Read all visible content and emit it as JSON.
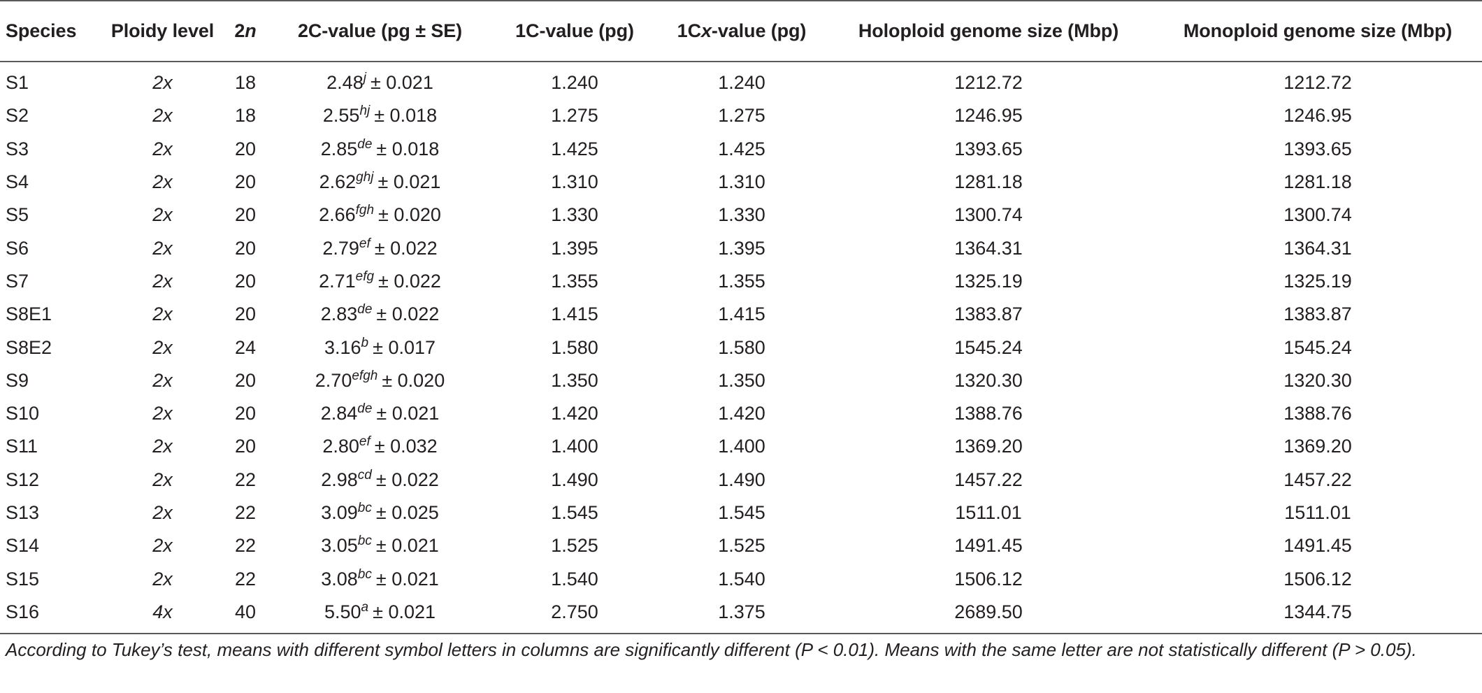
{
  "table": {
    "headers": {
      "species": "Species",
      "ploidy": "Ploidy level",
      "two_n": {
        "prefix": "2",
        "italic": "n"
      },
      "two_c": "2C-value (pg ± SE)",
      "one_c": "1C-value (pg)",
      "one_cx": {
        "prefix": "1C",
        "italic": "x",
        "suffix": "-value (pg)"
      },
      "holo": "Holoploid genome size (Mbp)",
      "mono": "Monoploid genome size (Mbp)"
    },
    "rows": [
      {
        "species": "S1",
        "ploidy": "2x",
        "two_n": "18",
        "two_c_mean": "2.48",
        "two_c_letters": "j",
        "two_c_se": "± 0.021",
        "one_c": "1.240",
        "one_cx": "1.240",
        "holo": "1212.72",
        "mono": "1212.72"
      },
      {
        "species": "S2",
        "ploidy": "2x",
        "two_n": "18",
        "two_c_mean": "2.55",
        "two_c_letters": "hj",
        "two_c_se": "± 0.018",
        "one_c": "1.275",
        "one_cx": "1.275",
        "holo": "1246.95",
        "mono": "1246.95"
      },
      {
        "species": "S3",
        "ploidy": "2x",
        "two_n": "20",
        "two_c_mean": "2.85",
        "two_c_letters": "de",
        "two_c_se": "± 0.018",
        "one_c": "1.425",
        "one_cx": "1.425",
        "holo": "1393.65",
        "mono": "1393.65"
      },
      {
        "species": "S4",
        "ploidy": "2x",
        "two_n": "20",
        "two_c_mean": "2.62",
        "two_c_letters": "ghj",
        "two_c_se": "± 0.021",
        "one_c": "1.310",
        "one_cx": "1.310",
        "holo": "1281.18",
        "mono": "1281.18"
      },
      {
        "species": "S5",
        "ploidy": "2x",
        "two_n": "20",
        "two_c_mean": "2.66",
        "two_c_letters": "fgh",
        "two_c_se": "± 0.020",
        "one_c": "1.330",
        "one_cx": "1.330",
        "holo": "1300.74",
        "mono": "1300.74"
      },
      {
        "species": "S6",
        "ploidy": "2x",
        "two_n": "20",
        "two_c_mean": "2.79",
        "two_c_letters": "ef",
        "two_c_se": "± 0.022",
        "one_c": "1.395",
        "one_cx": "1.395",
        "holo": "1364.31",
        "mono": "1364.31"
      },
      {
        "species": "S7",
        "ploidy": "2x",
        "two_n": "20",
        "two_c_mean": "2.71",
        "two_c_letters": "efg",
        "two_c_se": "± 0.022",
        "one_c": "1.355",
        "one_cx": "1.355",
        "holo": "1325.19",
        "mono": "1325.19"
      },
      {
        "species": "S8E1",
        "ploidy": "2x",
        "two_n": "20",
        "two_c_mean": "2.83",
        "two_c_letters": "de",
        "two_c_se": "± 0.022",
        "one_c": "1.415",
        "one_cx": "1.415",
        "holo": "1383.87",
        "mono": "1383.87"
      },
      {
        "species": "S8E2",
        "ploidy": "2x",
        "two_n": "24",
        "two_c_mean": "3.16",
        "two_c_letters": "b",
        "two_c_se": "± 0.017",
        "one_c": "1.580",
        "one_cx": "1.580",
        "holo": "1545.24",
        "mono": "1545.24"
      },
      {
        "species": "S9",
        "ploidy": "2x",
        "two_n": "20",
        "two_c_mean": "2.70",
        "two_c_letters": "efgh",
        "two_c_se": "± 0.020",
        "one_c": "1.350",
        "one_cx": "1.350",
        "holo": "1320.30",
        "mono": "1320.30"
      },
      {
        "species": "S10",
        "ploidy": "2x",
        "two_n": "20",
        "two_c_mean": "2.84",
        "two_c_letters": "de",
        "two_c_se": "± 0.021",
        "one_c": "1.420",
        "one_cx": "1.420",
        "holo": "1388.76",
        "mono": "1388.76"
      },
      {
        "species": "S11",
        "ploidy": "2x",
        "two_n": "20",
        "two_c_mean": "2.80",
        "two_c_letters": "ef",
        "two_c_se": "± 0.032",
        "one_c": "1.400",
        "one_cx": "1.400",
        "holo": "1369.20",
        "mono": "1369.20"
      },
      {
        "species": "S12",
        "ploidy": "2x",
        "two_n": "22",
        "two_c_mean": "2.98",
        "two_c_letters": "cd",
        "two_c_se": "± 0.022",
        "one_c": "1.490",
        "one_cx": "1.490",
        "holo": "1457.22",
        "mono": "1457.22"
      },
      {
        "species": "S13",
        "ploidy": "2x",
        "two_n": "22",
        "two_c_mean": "3.09",
        "two_c_letters": "bc",
        "two_c_se": "± 0.025",
        "one_c": "1.545",
        "one_cx": "1.545",
        "holo": "1511.01",
        "mono": "1511.01"
      },
      {
        "species": "S14",
        "ploidy": "2x",
        "two_n": "22",
        "two_c_mean": "3.05",
        "two_c_letters": "bc",
        "two_c_se": "± 0.021",
        "one_c": "1.525",
        "one_cx": "1.525",
        "holo": "1491.45",
        "mono": "1491.45"
      },
      {
        "species": "S15",
        "ploidy": "2x",
        "two_n": "22",
        "two_c_mean": "3.08",
        "two_c_letters": "bc",
        "two_c_se": "± 0.021",
        "one_c": "1.540",
        "one_cx": "1.540",
        "holo": "1506.12",
        "mono": "1506.12"
      },
      {
        "species": "S16",
        "ploidy": "4x",
        "two_n": "40",
        "two_c_mean": "5.50",
        "two_c_letters": "a",
        "two_c_se": "± 0.021",
        "one_c": "2.750",
        "one_cx": "1.375",
        "holo": "2689.50",
        "mono": "1344.75"
      }
    ]
  },
  "footnote": "According to Tukey’s test, means with different symbol letters in columns are significantly different (P < 0.01). Means with the same letter are not statistically different (P > 0.05)."
}
